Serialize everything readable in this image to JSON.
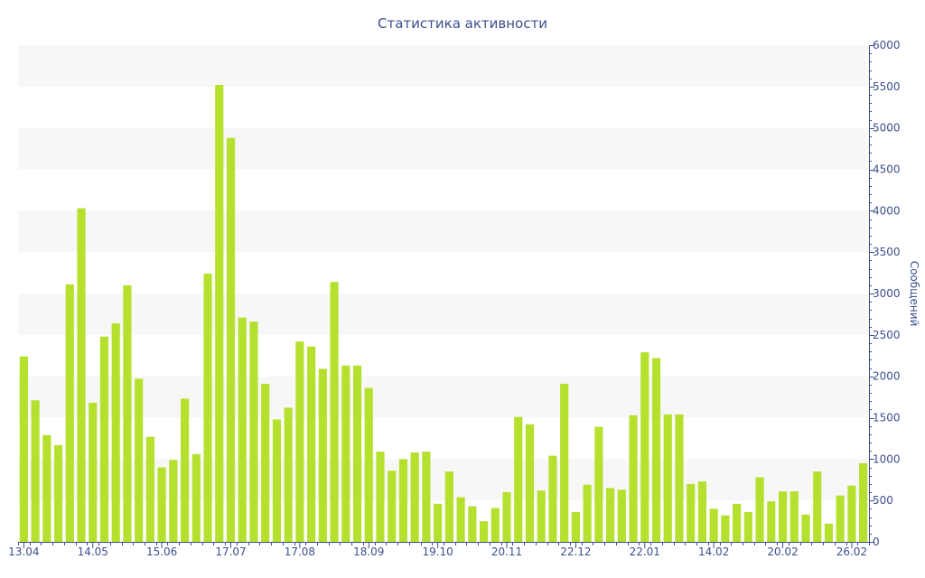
{
  "chart_data": {
    "type": "bar",
    "title": "Статистика активности",
    "ylabel": "Сообщений",
    "xlabel": "",
    "ylim": [
      0,
      6000
    ],
    "y_ticks": [
      0,
      500,
      1000,
      1500,
      2000,
      2500,
      3000,
      3500,
      4000,
      4500,
      5000,
      5500,
      6000
    ],
    "x_tick_labels": [
      {
        "label": "13.04",
        "index": 0
      },
      {
        "label": "14.05",
        "index": 6
      },
      {
        "label": "15.06",
        "index": 12
      },
      {
        "label": "17.07",
        "index": 18
      },
      {
        "label": "17.08",
        "index": 24
      },
      {
        "label": "18.09",
        "index": 30
      },
      {
        "label": "19.10",
        "index": 36
      },
      {
        "label": "20.11",
        "index": 42
      },
      {
        "label": "22.12",
        "index": 48
      },
      {
        "label": "22.01",
        "index": 54
      },
      {
        "label": "14.02",
        "index": 60
      },
      {
        "label": "20.02",
        "index": 66
      },
      {
        "label": "26.02",
        "index": 72
      }
    ],
    "y_axis_position": "right",
    "grid": "alternating horizontal bands",
    "bar_color": "#b5e12e",
    "band_color": "#f7f7f7",
    "axis_color": "#3d4f8f",
    "values": [
      2240,
      1710,
      1290,
      1170,
      3110,
      4030,
      1680,
      2480,
      2640,
      3100,
      1970,
      1270,
      900,
      990,
      1730,
      1060,
      3240,
      5520,
      4880,
      2710,
      2660,
      1910,
      1480,
      1620,
      2420,
      2360,
      2090,
      3140,
      2130,
      2130,
      1860,
      1090,
      860,
      1000,
      1080,
      1090,
      460,
      850,
      540,
      430,
      250,
      410,
      600,
      1510,
      1420,
      620,
      1040,
      1910,
      360,
      690,
      1390,
      650,
      630,
      1530,
      2290,
      2220,
      1540,
      1540,
      700,
      730,
      400,
      320,
      460,
      360,
      780,
      490,
      610,
      610,
      330,
      850,
      220,
      560,
      680,
      950
    ]
  }
}
